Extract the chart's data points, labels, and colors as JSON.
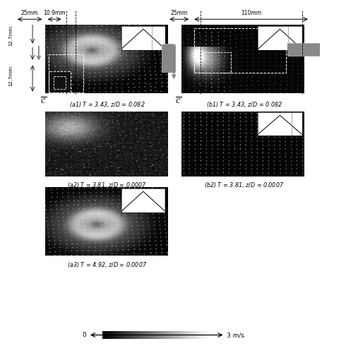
{
  "fig_bg": "#ffffff",
  "panels": [
    {
      "id": "a1",
      "caption": "(a1) T = 3.43, z/D = 0.082"
    },
    {
      "id": "b1",
      "caption": "(b1) T = 3.43, z/D = 0.082"
    },
    {
      "id": "a2",
      "caption": "(a2) T = 3.81, z/D = 0.0007"
    },
    {
      "id": "b2",
      "caption": "(b2) T = 3.81, z/D = 0.0007"
    },
    {
      "id": "a3",
      "caption": "(a3) T = 4.92, z/D = 0.0007"
    }
  ],
  "dim_top_left_a": "25mm",
  "dim_top_right_a": "10.9mm",
  "dim_left_top": "12.7mm",
  "dim_left_bot": "12.7mm",
  "dim_top_left_b": "25mm",
  "dim_top_right_b": "110mm",
  "colorbar_left": "0",
  "colorbar_right": "3 m/s",
  "panel_positions": {
    "a1": [
      0.13,
      0.735,
      0.355,
      0.195
    ],
    "b1": [
      0.525,
      0.735,
      0.355,
      0.195
    ],
    "a2": [
      0.13,
      0.5,
      0.355,
      0.185
    ],
    "b2": [
      0.525,
      0.5,
      0.355,
      0.185
    ],
    "a3": [
      0.13,
      0.275,
      0.355,
      0.195
    ]
  }
}
